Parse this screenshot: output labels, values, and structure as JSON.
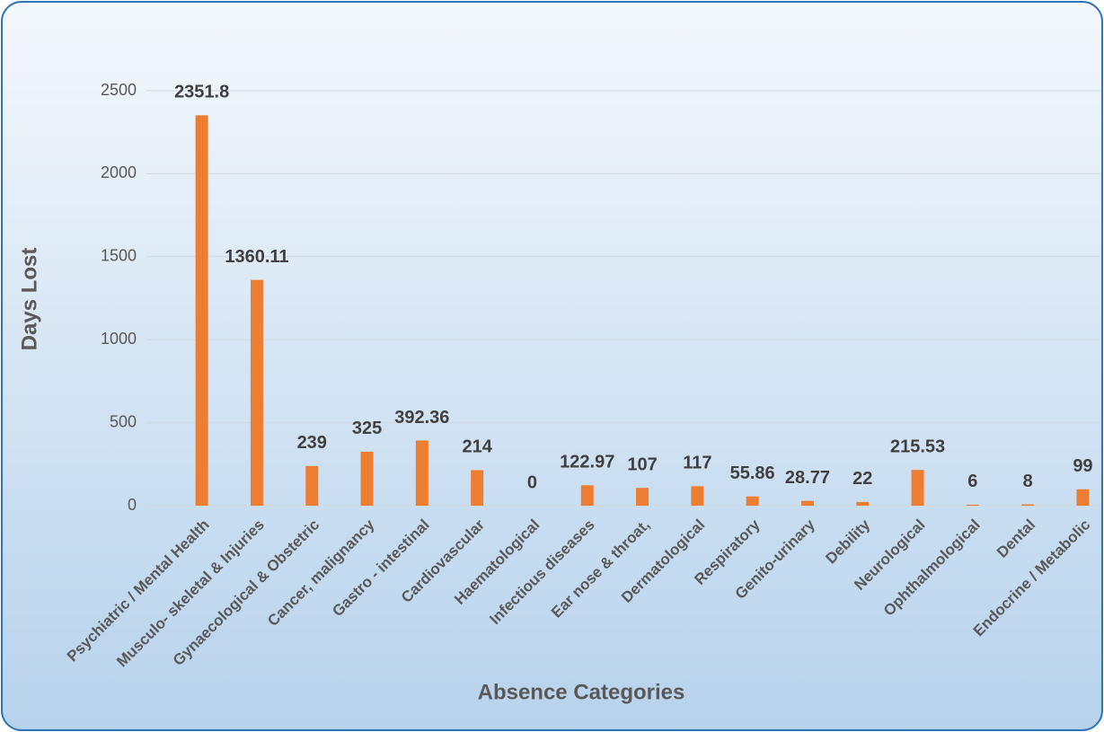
{
  "chart_data": {
    "type": "bar",
    "x_label": "Absence Categories",
    "y_label": "Days Lost",
    "categories": [
      "Psychiatric / Mental Health",
      "Musculo- skeletal & Injuries",
      "Gynaecological & Obstetric",
      "Cancer, malignancy",
      "Gastro - intestinal",
      "Cardiovascular",
      "Haematological",
      "Infectious diseases",
      "Ear nose & throat,",
      "Dermatological",
      "Respiratory",
      "Genito-urinary",
      "Debility",
      "Neurological",
      "Ophthalmological",
      "Dental",
      "Endocrine / Metabolic"
    ],
    "values": [
      2351.8,
      1360.11,
      239,
      325,
      392.36,
      214,
      0,
      122.97,
      107,
      117,
      55.86,
      28.77,
      22,
      215.53,
      6,
      8,
      99
    ],
    "color": "#ed7d31",
    "ylim": [
      0,
      2500
    ],
    "yticks": [
      0,
      500,
      1000,
      1500,
      2000,
      2500
    ],
    "grid": true
  }
}
